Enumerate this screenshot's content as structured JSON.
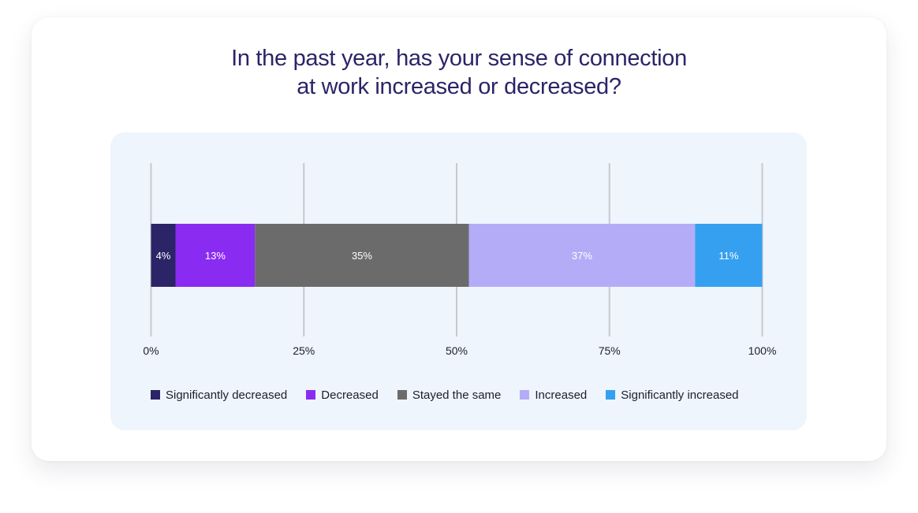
{
  "title": {
    "line1": "In the past year, has your sense of connection",
    "line2": "at work increased or decreased?"
  },
  "chart_data": {
    "type": "bar",
    "orientation": "horizontal",
    "stacked": true,
    "title": "In the past year, has your sense of connection at work increased or decreased?",
    "xlim": [
      0,
      100
    ],
    "xticks": [
      0,
      25,
      50,
      75,
      100
    ],
    "xtick_labels": [
      "0%",
      "25%",
      "50%",
      "75%",
      "100%"
    ],
    "grid": true,
    "legend_position": "bottom",
    "series": [
      {
        "name": "Significantly decreased",
        "value": 4,
        "label": "4%",
        "color": "#2b2467"
      },
      {
        "name": "Decreased",
        "value": 13,
        "label": "13%",
        "color": "#8a2bf2"
      },
      {
        "name": "Stayed the same",
        "value": 35,
        "label": "35%",
        "color": "#6b6b6b"
      },
      {
        "name": "Increased",
        "value": 37,
        "label": "37%",
        "color": "#b5acf8"
      },
      {
        "name": "Significantly increased",
        "value": 11,
        "label": "11%",
        "color": "#35a0f0"
      }
    ]
  }
}
